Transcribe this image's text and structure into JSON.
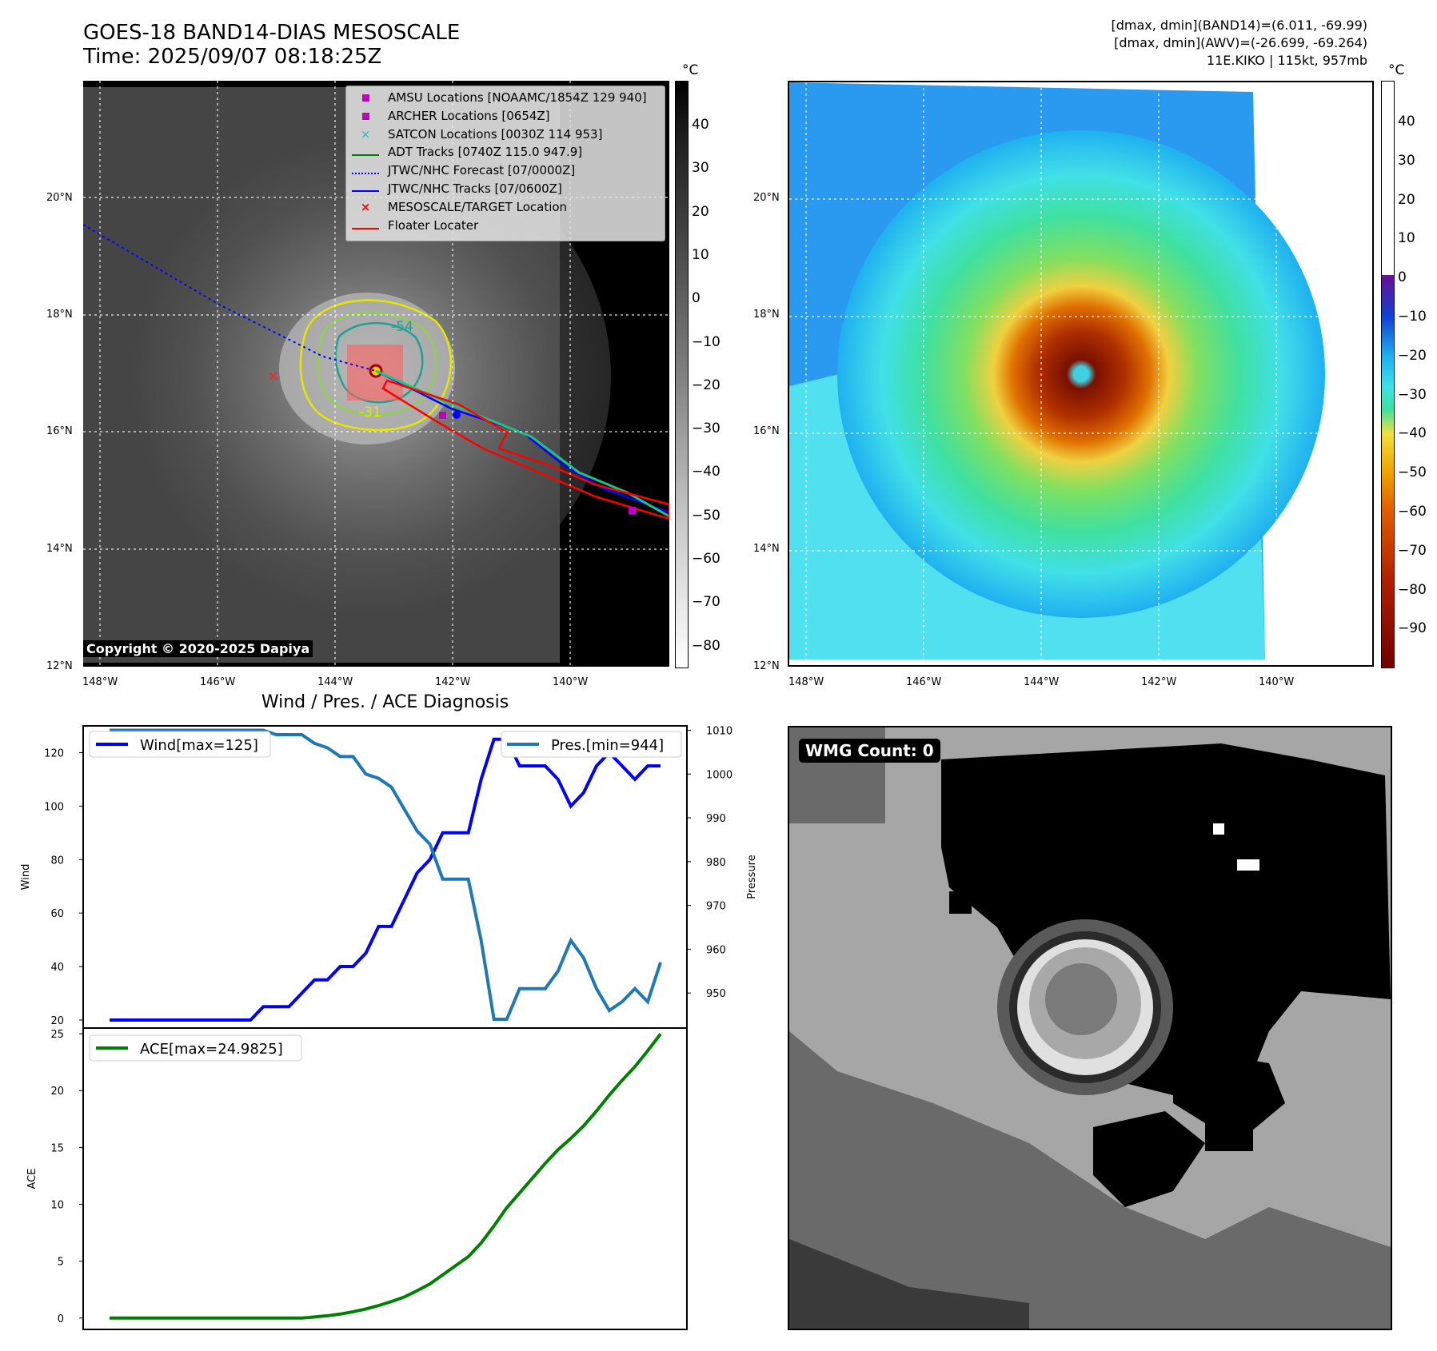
{
  "header": {
    "title_line1": "GOES-18 BAND14-DIAS MESOSCALE",
    "title_line2": "Time: 2025/09/07 08:18:25Z",
    "info_line1": "[dmax, dmin](BAND14)=(6.011, -69.99)",
    "info_line2": "[dmax, dmin](AWV)=(-26.699, -69.264)",
    "info_line3": "11E.KIKO | 115kt, 957mb"
  },
  "map": {
    "lat_labels": [
      "20°N",
      "18°N",
      "16°N",
      "14°N",
      "12°N"
    ],
    "lon_labels": [
      "148°W",
      "146°W",
      "144°W",
      "142°W",
      "140°W"
    ],
    "copyright": "Copyright © 2020-2025 Dapiya",
    "contour_labels": [
      "-54",
      "-31"
    ],
    "legend": [
      {
        "label": "AMSU Locations [NOAAMC/1854Z 129 940]",
        "color": "#c000c0"
      },
      {
        "label": "ARCHER Locations [0654Z]",
        "color": "#c000c0"
      },
      {
        "label": "SATCON Locations [0030Z 114 953]",
        "color": "#20c0c0"
      },
      {
        "label": "ADT Tracks [0740Z 115.0 947.9]",
        "color": "#008000"
      },
      {
        "label": "JTWC/NHC Forecast [07/0000Z]",
        "color": "#0000ff"
      },
      {
        "label": "JTWC/NHC Tracks [07/0600Z]",
        "color": "#0000ff"
      },
      {
        "label": "MESOSCALE/TARGET Location",
        "color": "#ff0000"
      },
      {
        "label": "Floater Locater",
        "color": "#ff0000"
      }
    ]
  },
  "colorbar_gray": {
    "unit": "°C",
    "ticks": [
      "40",
      "30",
      "20",
      "10",
      "0",
      "−10",
      "−20",
      "−30",
      "−40",
      "−50",
      "−60",
      "−70",
      "−80"
    ]
  },
  "colorbar_color": {
    "unit": "°C",
    "ticks": [
      "40",
      "30",
      "20",
      "10",
      "0",
      "−10",
      "−20",
      "−30",
      "−40",
      "−50",
      "−60",
      "−70",
      "−80",
      "−90"
    ]
  },
  "chart_data": [
    {
      "type": "line",
      "title": "Wind / Pres. / ACE Diagnosis",
      "ylabel": "Wind",
      "y2label": "Pressure",
      "ylim": [
        17,
        130
      ],
      "y2lim": [
        942,
        1011
      ],
      "yticks": [
        20,
        40,
        60,
        80,
        100,
        120
      ],
      "y2ticks": [
        950,
        960,
        970,
        980,
        990,
        1000,
        1010
      ],
      "series": [
        {
          "name": "Wind[max=125]",
          "axis": "left",
          "color": "#0000ff",
          "values": [
            20,
            20,
            20,
            20,
            20,
            20,
            20,
            20,
            20,
            20,
            20,
            20,
            25,
            25,
            25,
            30,
            35,
            35,
            40,
            40,
            45,
            55,
            55,
            65,
            75,
            80,
            90,
            90,
            90,
            110,
            125,
            125,
            115,
            115,
            115,
            110,
            100,
            105,
            115,
            120,
            115,
            110,
            115,
            115
          ]
        },
        {
          "name": "Pres.[min=944]",
          "axis": "right",
          "color": "#1f77b4",
          "values": [
            1010,
            1010,
            1010,
            1010,
            1010,
            1010,
            1010,
            1010,
            1010,
            1010,
            1010,
            1010,
            1010,
            1009,
            1009,
            1009,
            1007,
            1006,
            1004,
            1004,
            1000,
            999,
            997,
            992,
            987,
            984,
            976,
            976,
            976,
            962,
            944,
            944,
            951,
            951,
            951,
            955,
            962,
            958,
            951,
            946,
            948,
            951,
            948,
            957
          ]
        }
      ]
    },
    {
      "type": "line",
      "ylabel": "ACE",
      "ylim": [
        -1,
        25.5
      ],
      "yticks": [
        0,
        5,
        10,
        15,
        20,
        25
      ],
      "series": [
        {
          "name": "ACE[max=24.9825]",
          "color": "#008000",
          "values": [
            0,
            0,
            0,
            0,
            0,
            0,
            0,
            0,
            0,
            0,
            0,
            0,
            0,
            0,
            0,
            0,
            0.1,
            0.2,
            0.35,
            0.55,
            0.8,
            1.1,
            1.45,
            1.85,
            2.4,
            3.0,
            3.8,
            4.6,
            5.4,
            6.6,
            8.1,
            9.7,
            11.0,
            12.3,
            13.6,
            14.8,
            15.8,
            16.9,
            18.2,
            19.6,
            20.9,
            22.1,
            23.5,
            24.9825
          ]
        }
      ]
    }
  ],
  "wmg": {
    "label": "WMG Count: 0"
  }
}
